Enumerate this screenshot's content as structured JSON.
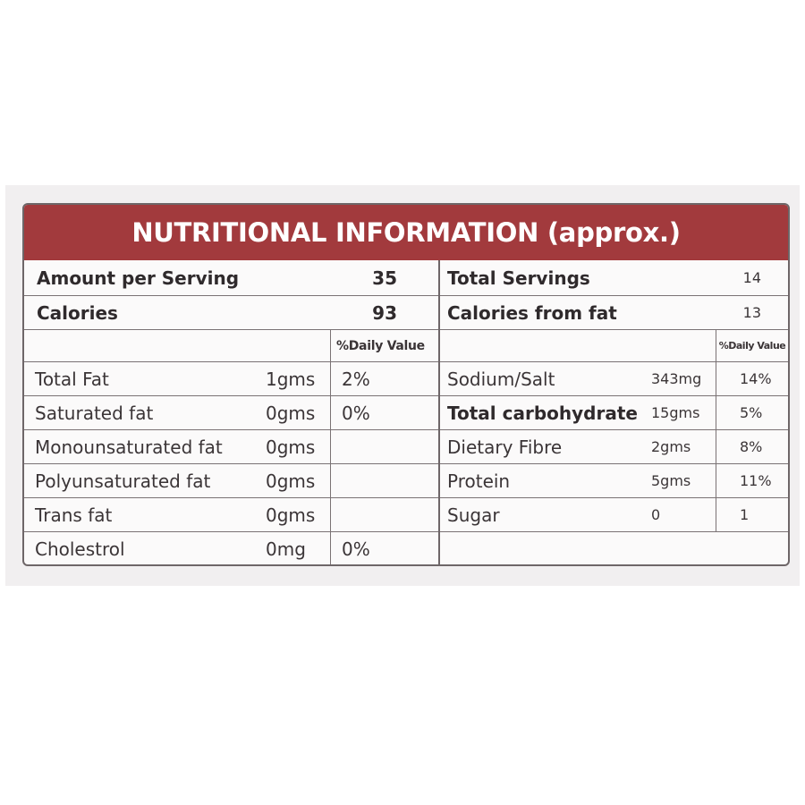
{
  "title": "NUTRITIONAL INFORMATION (approx.)",
  "colors": {
    "banner": "#a23a3d",
    "border": "#6e6668",
    "text": "#3b3537"
  },
  "left": {
    "amount_label": "Amount per Serving",
    "amount_value": "35",
    "calories_label": "Calories",
    "calories_value": "93",
    "dv_header": "%Daily Value",
    "rows": [
      {
        "name": "Total Fat",
        "amount": "1gms",
        "dv": "2%"
      },
      {
        "name": "Saturated fat",
        "amount": "0gms",
        "dv": "0%"
      },
      {
        "name": "Monounsaturated fat",
        "amount": "0gms",
        "dv": ""
      },
      {
        "name": "Polyunsaturated fat",
        "amount": "0gms",
        "dv": ""
      },
      {
        "name": "Trans fat",
        "amount": "0gms",
        "dv": ""
      },
      {
        "name": "Cholestrol",
        "amount": "0mg",
        "dv": "0%"
      }
    ]
  },
  "right": {
    "servings_label": "Total Servings",
    "servings_value": "14",
    "fatcal_label": "Calories from fat",
    "fatcal_value": "13",
    "dv_header": "%Daily Value",
    "rows": [
      {
        "name": "Sodium/Salt",
        "amount": "343mg",
        "dv": "14%"
      },
      {
        "name": "Total carbohydrate",
        "amount": "15gms",
        "dv": "5%"
      },
      {
        "name": "Dietary Fibre",
        "amount": "2gms",
        "dv": "8%"
      },
      {
        "name": "Protein",
        "amount": "5gms",
        "dv": "11%"
      },
      {
        "name": "Sugar",
        "amount": "0",
        "dv": "1"
      }
    ]
  }
}
